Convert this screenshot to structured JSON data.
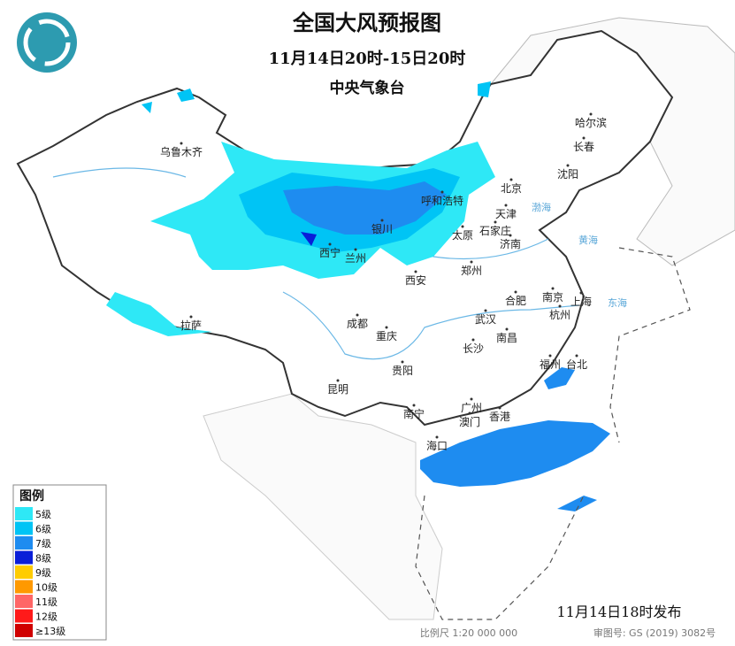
{
  "header": {
    "title": "全国大风预报图",
    "period": "11月14日20时-15日20时",
    "agency": "中央气象台"
  },
  "legend": {
    "title": "图例",
    "items": [
      {
        "label": "5级",
        "color": "#2ee8f6"
      },
      {
        "label": "6级",
        "color": "#00c4f5"
      },
      {
        "label": "7级",
        "color": "#1e8cf0"
      },
      {
        "label": "8级",
        "color": "#0a1ed8"
      },
      {
        "label": "9级",
        "color": "#ffcc00"
      },
      {
        "label": "10级",
        "color": "#ff9900"
      },
      {
        "label": "11级",
        "color": "#ff6666"
      },
      {
        "label": "12级",
        "color": "#ff1a1a"
      },
      {
        "label": "≥13级",
        "color": "#d00000"
      }
    ]
  },
  "cities": [
    "乌鲁木齐",
    "哈尔滨",
    "长春",
    "沈阳",
    "北京",
    "天津",
    "呼和浩特",
    "银川",
    "太原",
    "石家庄",
    "济南",
    "西宁",
    "兰州",
    "郑州",
    "西安",
    "南京",
    "合肥",
    "上海",
    "杭州",
    "拉萨",
    "成都",
    "武汉",
    "重庆",
    "南昌",
    "长沙",
    "福州",
    "台北",
    "贵阳",
    "昆明",
    "广州",
    "南宁",
    "澳门",
    "香港",
    "海口"
  ],
  "seas": [
    "东海",
    "黄海",
    "渤海"
  ],
  "footer": {
    "issued": "11月14日18时发布",
    "scale": "比例尺 1:20 000 000",
    "review": "审图号: GS (2019) 3082号"
  }
}
